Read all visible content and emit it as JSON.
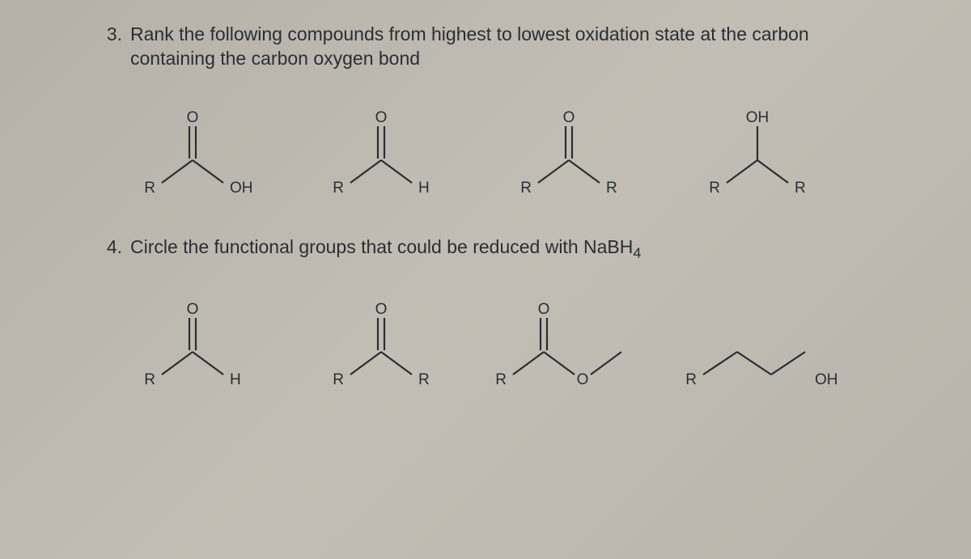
{
  "background_color": "#bcb8af",
  "text_color": "#2a2e33",
  "font_size_body": 23,
  "q3": {
    "number": "3.",
    "text_line1": "Rank the following compounds from highest to lowest oxidation state at the carbon",
    "text_line2": "containing the carbon oxygen bond"
  },
  "q4": {
    "number": "4.",
    "text_prefix": "Circle the functional groups that could be reduced with NaBH",
    "text_sub": "4"
  },
  "labels": {
    "R": "R",
    "H": "H",
    "O": "O",
    "OH": "OH"
  },
  "svg_style": {
    "stroke": "#2a2e33",
    "stroke_width": 2.2,
    "label_fontsize": 19
  }
}
